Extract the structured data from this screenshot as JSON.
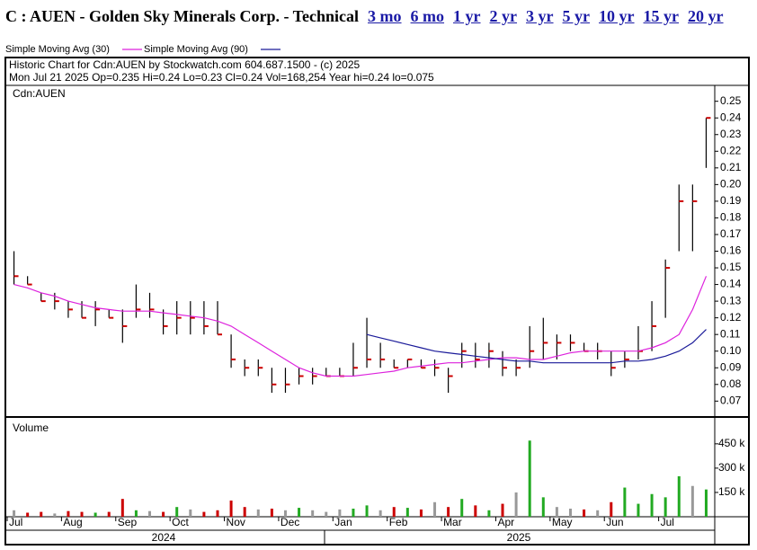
{
  "chart_data": {
    "type": "ohlc",
    "title": "C : AUEN - Golden Sky Minerals Corp. - Technical",
    "periods": [
      "3 mo",
      "6 mo",
      "1 yr",
      "2 yr",
      "3 yr",
      "5 yr",
      "10 yr",
      "15 yr",
      "20 yr"
    ],
    "caption": "Historic Chart for Cdn:AUEN by Stockwatch.com 604.687.1500 - (c) 2025",
    "quote": "Mon Jul 21 2025  Op=0.235  Hi=0.24  Lo=0.23  Cl=0.24  Vol=168,254  Year hi=0.24  lo=0.075",
    "symbol": "Cdn:AUEN",
    "volume_label": "Volume",
    "years": [
      "2024",
      "2025"
    ],
    "categories": [
      "Jul",
      null,
      null,
      null,
      "Aug",
      null,
      null,
      null,
      "Sep",
      null,
      null,
      null,
      "Oct",
      null,
      null,
      null,
      "Nov",
      null,
      null,
      null,
      "Dec",
      null,
      null,
      null,
      "Jan",
      null,
      null,
      null,
      "Feb",
      null,
      null,
      null,
      "Mar",
      null,
      null,
      null,
      "Apr",
      null,
      null,
      null,
      "May",
      null,
      null,
      null,
      "Jun",
      null,
      null,
      null,
      "Jul",
      null,
      null,
      null
    ],
    "high": [
      0.16,
      0.145,
      0.135,
      0.135,
      0.13,
      0.13,
      0.13,
      0.125,
      0.125,
      0.14,
      0.135,
      0.125,
      0.13,
      0.13,
      0.13,
      0.13,
      0.11,
      0.095,
      0.095,
      0.09,
      0.09,
      0.09,
      0.09,
      0.09,
      0.09,
      0.105,
      0.12,
      0.105,
      0.095,
      0.095,
      0.095,
      0.095,
      0.09,
      0.105,
      0.105,
      0.105,
      0.1,
      0.095,
      0.115,
      0.12,
      0.11,
      0.11,
      0.105,
      0.105,
      0.1,
      0.1,
      0.115,
      0.13,
      0.155,
      0.2,
      0.2,
      0.24
    ],
    "low": [
      0.14,
      0.14,
      0.13,
      0.125,
      0.12,
      0.12,
      0.115,
      0.12,
      0.105,
      0.12,
      0.12,
      0.11,
      0.11,
      0.11,
      0.11,
      0.11,
      0.09,
      0.085,
      0.085,
      0.075,
      0.075,
      0.08,
      0.08,
      0.085,
      0.085,
      0.085,
      0.09,
      0.09,
      0.09,
      0.09,
      0.09,
      0.085,
      0.075,
      0.09,
      0.09,
      0.09,
      0.085,
      0.085,
      0.09,
      0.095,
      0.095,
      0.1,
      0.1,
      0.095,
      0.085,
      0.09,
      0.095,
      0.1,
      0.12,
      0.16,
      0.16,
      0.21
    ],
    "close": [
      0.145,
      0.14,
      0.13,
      0.13,
      0.125,
      0.12,
      0.125,
      0.12,
      0.115,
      0.125,
      0.125,
      0.115,
      0.12,
      0.12,
      0.115,
      0.11,
      0.095,
      0.09,
      0.09,
      0.08,
      0.08,
      0.085,
      0.085,
      0.085,
      0.085,
      0.09,
      0.095,
      0.095,
      0.09,
      0.095,
      0.09,
      0.09,
      0.085,
      0.1,
      0.095,
      0.1,
      0.09,
      0.09,
      0.1,
      0.105,
      0.105,
      0.105,
      0.1,
      0.1,
      0.09,
      0.095,
      0.1,
      0.115,
      0.15,
      0.19,
      0.19,
      0.24
    ],
    "bar_color": "#000000",
    "close_color": "#cc0000",
    "series": [
      {
        "name": "Simple Moving Avg (30)",
        "color": "#dd22dd",
        "values": [
          0.14,
          0.138,
          0.135,
          0.133,
          0.13,
          0.128,
          0.126,
          0.125,
          0.124,
          0.124,
          0.124,
          0.123,
          0.122,
          0.121,
          0.12,
          0.118,
          0.115,
          0.11,
          0.105,
          0.1,
          0.095,
          0.09,
          0.087,
          0.085,
          0.085,
          0.085,
          0.086,
          0.087,
          0.088,
          0.09,
          0.091,
          0.092,
          0.093,
          0.093,
          0.094,
          0.095,
          0.096,
          0.096,
          0.095,
          0.095,
          0.097,
          0.099,
          0.1,
          0.1,
          0.1,
          0.1,
          0.1,
          0.102,
          0.105,
          0.11,
          0.125,
          0.145
        ]
      },
      {
        "name": "Simple Moving Avg (90)",
        "color": "#1a1a99",
        "values": [
          null,
          null,
          null,
          null,
          null,
          null,
          null,
          null,
          null,
          null,
          null,
          null,
          null,
          null,
          null,
          null,
          null,
          null,
          null,
          null,
          null,
          null,
          null,
          null,
          null,
          null,
          0.11,
          0.108,
          0.106,
          0.104,
          0.102,
          0.1,
          0.099,
          0.098,
          0.097,
          0.096,
          0.095,
          0.094,
          0.094,
          0.093,
          0.093,
          0.093,
          0.093,
          0.093,
          0.093,
          0.094,
          0.094,
          0.095,
          0.097,
          0.1,
          0.105,
          0.113
        ]
      }
    ],
    "ylim": [
      0.061,
      0.259
    ],
    "yticks": [
      0.07,
      0.08,
      0.09,
      {
        "value": 0.1,
        "label": "0.10"
      },
      0.11,
      0.12,
      0.13,
      0.14,
      0.15,
      0.16,
      0.17,
      0.18,
      0.19,
      {
        "value": 0.2,
        "label": "0.20"
      },
      0.21,
      0.22,
      0.23,
      0.24,
      0.25
    ],
    "volume": [
      40000,
      25000,
      30000,
      20000,
      35000,
      30000,
      25000,
      30000,
      110000,
      40000,
      35000,
      30000,
      60000,
      45000,
      30000,
      40000,
      100000,
      60000,
      45000,
      50000,
      40000,
      55000,
      40000,
      30000,
      45000,
      50000,
      70000,
      40000,
      60000,
      55000,
      45000,
      90000,
      60000,
      110000,
      70000,
      40000,
      80000,
      150000,
      470000,
      120000,
      60000,
      50000,
      45000,
      40000,
      90000,
      180000,
      80000,
      140000,
      120000,
      250000,
      190000,
      168254
    ],
    "up_color": "#22aa22",
    "down_color": "#cc0000",
    "flat_color": "#999999",
    "volume_ylim": [
      0,
      610000
    ],
    "volume_ticks": [
      {
        "value": 150000,
        "label": "150 k"
      },
      {
        "value": 300000,
        "label": "300 k"
      },
      {
        "value": 450000,
        "label": "450 k"
      }
    ]
  }
}
